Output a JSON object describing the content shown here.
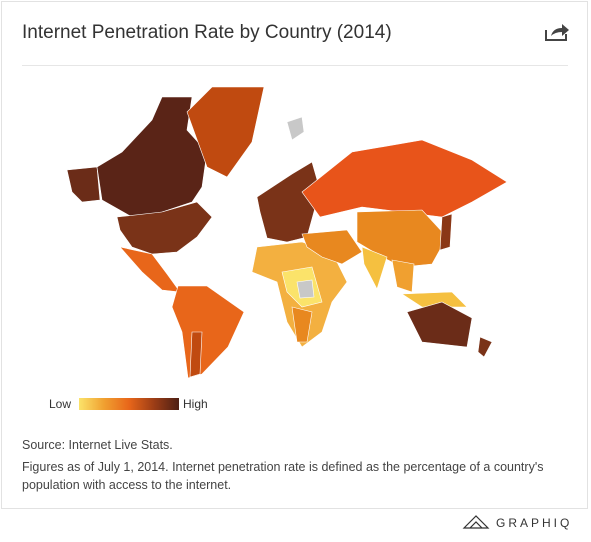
{
  "header": {
    "title": "Internet Penetration Rate by Country (2014)"
  },
  "legend": {
    "low": "Low",
    "high": "High"
  },
  "footer": {
    "source": "Source: Internet Live Stats.",
    "note": "Figures as of July 1, 2014. Internet penetration rate is defined as the percentage of a country's population with access to the internet."
  },
  "brand": "GRAPHIQ"
}
